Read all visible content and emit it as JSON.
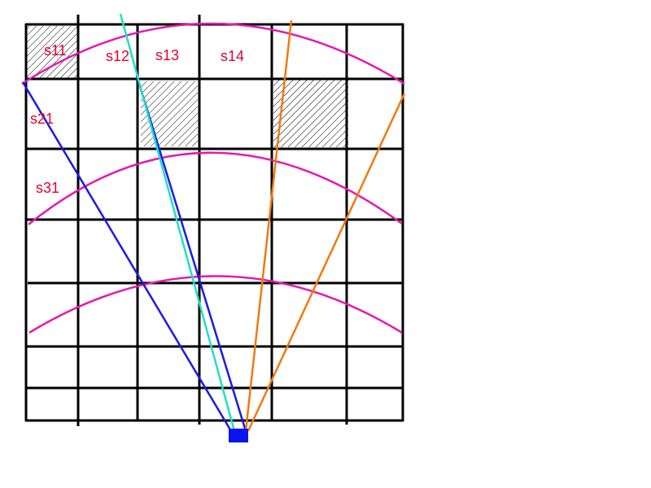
{
  "colors": {
    "grid": "#000000",
    "arc": "#e619b0",
    "label": "#e6002e",
    "ray_blue": "#1a1ae6",
    "ray_cyan": "#20e0c8",
    "ray_orange": "#f07a10",
    "sensor": "#0a14f0",
    "hatch": "#000000"
  },
  "labels": {
    "s11": "s11",
    "s12": "s12",
    "s13": "s13",
    "s14": "s14",
    "s21": "s21",
    "s31": "s31"
  }
}
